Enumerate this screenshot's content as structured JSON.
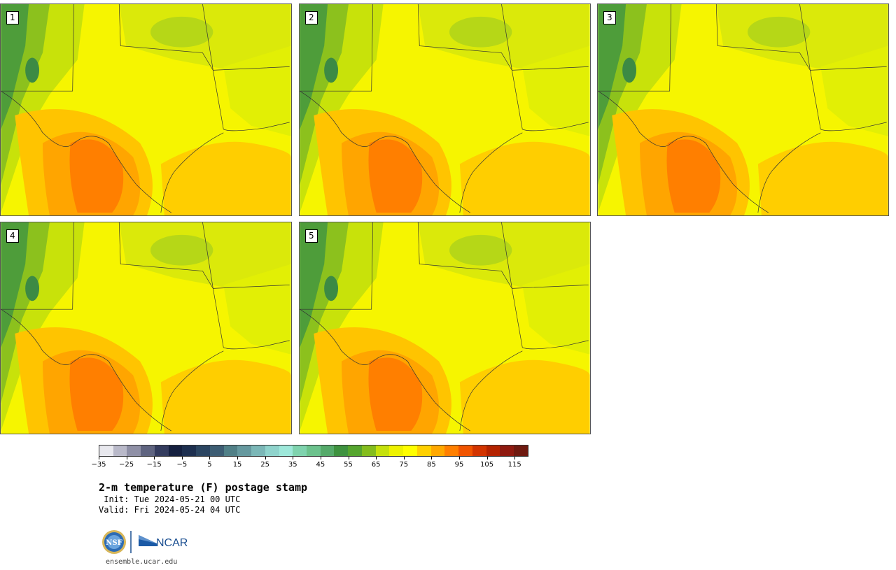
{
  "panels": [
    {
      "label": "1"
    },
    {
      "label": "2"
    },
    {
      "label": "3"
    },
    {
      "label": "4"
    },
    {
      "label": "5"
    }
  ],
  "colorbar": {
    "colors": [
      "#e8e8ee",
      "#b9b9c9",
      "#8f90a6",
      "#5f6480",
      "#343c5e",
      "#15203f",
      "#1d2f4f",
      "#2b4561",
      "#3d5d73",
      "#518087",
      "#66999f",
      "#7bb7b7",
      "#8fd3cc",
      "#9ee8da",
      "#7fd3ae",
      "#6cc28d",
      "#55aa6a",
      "#3e923f",
      "#55a52e",
      "#84bd1d",
      "#c5e10c",
      "#eef200",
      "#ffff00",
      "#ffd000",
      "#ffa800",
      "#ff7f00",
      "#f05400",
      "#d23400",
      "#b42300",
      "#8f1a10",
      "#6f1a10"
    ],
    "tick_labels": [
      "−35",
      "−25",
      "−15",
      "−5",
      "5",
      "15",
      "25",
      "35",
      "45",
      "55",
      "65",
      "75",
      "85",
      "95",
      "105",
      "115"
    ]
  },
  "title": "2-m temperature (F) postage stamp",
  "init": " Init: Tue 2024-05-21 00 UTC",
  "valid": "Valid: Fri 2024-05-24 04 UTC",
  "logos": {
    "nsf": "NSF",
    "ncar": "NCAR"
  },
  "site": "ensemble.ucar.edu"
}
